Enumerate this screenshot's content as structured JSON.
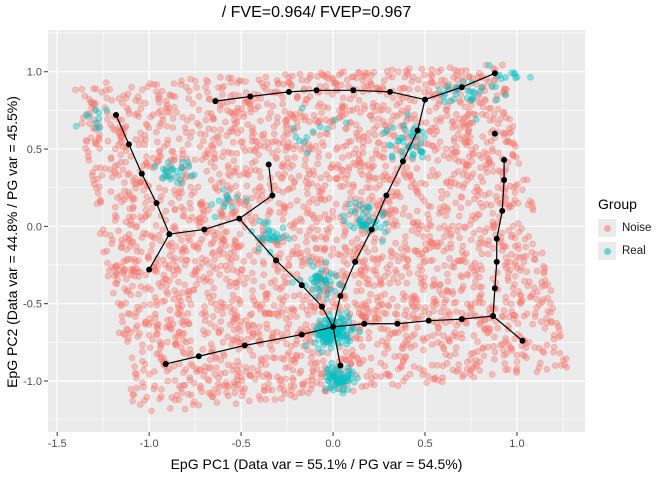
{
  "chart_data": {
    "type": "scatter",
    "title": "/ FVE=0.964/ FVEP=0.967",
    "xlabel": "EpG PC1 (Data var = 55.1% / PG var = 54.5%)",
    "ylabel": "EpG PC2 (Data var = 44.8% / PG var = 45.5%)",
    "xlim": [
      -1.55,
      1.37
    ],
    "ylim": [
      -1.33,
      1.27
    ],
    "x_ticks": [
      "-1.5",
      "-1.0",
      "-0.5",
      "0.0",
      "0.5",
      "1.0"
    ],
    "x_tick_values": [
      -1.5,
      -1.0,
      -0.5,
      0.0,
      0.5,
      1.0
    ],
    "y_ticks": [
      "-1.0",
      "-0.5",
      "0.0",
      "0.5",
      "1.0"
    ],
    "y_tick_values": [
      -1.0,
      -0.5,
      0.0,
      0.5,
      1.0
    ],
    "grid": true,
    "legend_position": "right",
    "legend": {
      "title": "Group",
      "items": [
        {
          "label": "Noise",
          "color": "#F8766D"
        },
        {
          "label": "Real",
          "color": "#00BFC4"
        }
      ]
    },
    "noise_region": [
      [
        -1.42,
        0.92
      ],
      [
        0.92,
        1.05
      ],
      [
        1.28,
        -0.92
      ],
      [
        -1.08,
        -1.22
      ]
    ],
    "noise_point_count": 3000,
    "real_points_approx": [
      {
        "x": 0.0,
        "y": -0.68,
        "spread": 0.05,
        "n": 130
      },
      {
        "x": 0.03,
        "y": -0.98,
        "spread": 0.04,
        "n": 60
      },
      {
        "x": -0.07,
        "y": -0.35,
        "spread": 0.05,
        "n": 40
      },
      {
        "x": 0.18,
        "y": 0.05,
        "spread": 0.06,
        "n": 40
      },
      {
        "x": 0.4,
        "y": 0.55,
        "spread": 0.06,
        "n": 40
      },
      {
        "x": -0.35,
        "y": -0.05,
        "spread": 0.05,
        "n": 25
      },
      {
        "x": -0.85,
        "y": 0.35,
        "spread": 0.06,
        "n": 25
      },
      {
        "x": 0.7,
        "y": 0.85,
        "spread": 0.06,
        "n": 25
      },
      {
        "x": 0.95,
        "y": 0.95,
        "spread": 0.05,
        "n": 15
      },
      {
        "x": -1.3,
        "y": 0.7,
        "spread": 0.05,
        "n": 10
      },
      {
        "x": -0.6,
        "y": 0.15,
        "spread": 0.05,
        "n": 12
      },
      {
        "x": -0.1,
        "y": 0.6,
        "spread": 0.06,
        "n": 12
      }
    ],
    "graph_nodes": [
      [
        -1.18,
        0.72
      ],
      [
        -1.11,
        0.53
      ],
      [
        -1.04,
        0.34
      ],
      [
        -0.96,
        0.15
      ],
      [
        -0.89,
        -0.05
      ],
      [
        -1.0,
        -0.28
      ],
      [
        -0.7,
        -0.02
      ],
      [
        -0.51,
        0.05
      ],
      [
        -0.35,
        0.4
      ],
      [
        -0.33,
        0.2
      ],
      [
        -0.31,
        -0.22
      ],
      [
        -0.17,
        -0.38
      ],
      [
        -0.06,
        -0.52
      ],
      [
        0.0,
        -0.65
      ],
      [
        0.04,
        -0.9
      ],
      [
        -0.17,
        -0.7
      ],
      [
        -0.48,
        -0.77
      ],
      [
        -0.73,
        -0.84
      ],
      [
        -0.91,
        -0.89
      ],
      [
        0.04,
        -0.45
      ],
      [
        0.12,
        -0.23
      ],
      [
        0.21,
        -0.02
      ],
      [
        0.29,
        0.2
      ],
      [
        0.38,
        0.42
      ],
      [
        0.46,
        0.62
      ],
      [
        0.5,
        0.82
      ],
      [
        0.7,
        0.9
      ],
      [
        0.88,
        0.99
      ],
      [
        0.31,
        0.87
      ],
      [
        0.11,
        0.88
      ],
      [
        -0.09,
        0.88
      ],
      [
        -0.24,
        0.87
      ],
      [
        -0.45,
        0.84
      ],
      [
        -0.64,
        0.81
      ],
      [
        0.17,
        -0.63
      ],
      [
        0.35,
        -0.63
      ],
      [
        0.52,
        -0.61
      ],
      [
        0.7,
        -0.6
      ],
      [
        0.87,
        -0.58
      ],
      [
        0.88,
        -0.4
      ],
      [
        0.89,
        -0.23
      ],
      [
        0.89,
        -0.08
      ],
      [
        0.92,
        0.1
      ],
      [
        0.93,
        0.3
      ],
      [
        0.93,
        0.43
      ],
      [
        0.88,
        0.6
      ],
      [
        1.03,
        -0.74
      ]
    ],
    "graph_edges": [
      [
        0,
        1
      ],
      [
        1,
        2
      ],
      [
        2,
        3
      ],
      [
        3,
        4
      ],
      [
        4,
        5
      ],
      [
        4,
        6
      ],
      [
        6,
        7
      ],
      [
        7,
        9
      ],
      [
        9,
        8
      ],
      [
        7,
        10
      ],
      [
        10,
        11
      ],
      [
        11,
        12
      ],
      [
        12,
        13
      ],
      [
        13,
        14
      ],
      [
        13,
        15
      ],
      [
        15,
        16
      ],
      [
        16,
        17
      ],
      [
        17,
        18
      ],
      [
        13,
        19
      ],
      [
        19,
        20
      ],
      [
        20,
        21
      ],
      [
        21,
        22
      ],
      [
        22,
        23
      ],
      [
        23,
        24
      ],
      [
        24,
        25
      ],
      [
        25,
        26
      ],
      [
        26,
        27
      ],
      [
        25,
        28
      ],
      [
        28,
        29
      ],
      [
        29,
        30
      ],
      [
        30,
        31
      ],
      [
        31,
        32
      ],
      [
        32,
        33
      ],
      [
        13,
        34
      ],
      [
        34,
        35
      ],
      [
        35,
        36
      ],
      [
        36,
        37
      ],
      [
        37,
        38
      ],
      [
        38,
        39
      ],
      [
        39,
        40
      ],
      [
        40,
        41
      ],
      [
        41,
        42
      ],
      [
        42,
        43
      ],
      [
        43,
        44
      ],
      [
        38,
        46
      ]
    ]
  }
}
